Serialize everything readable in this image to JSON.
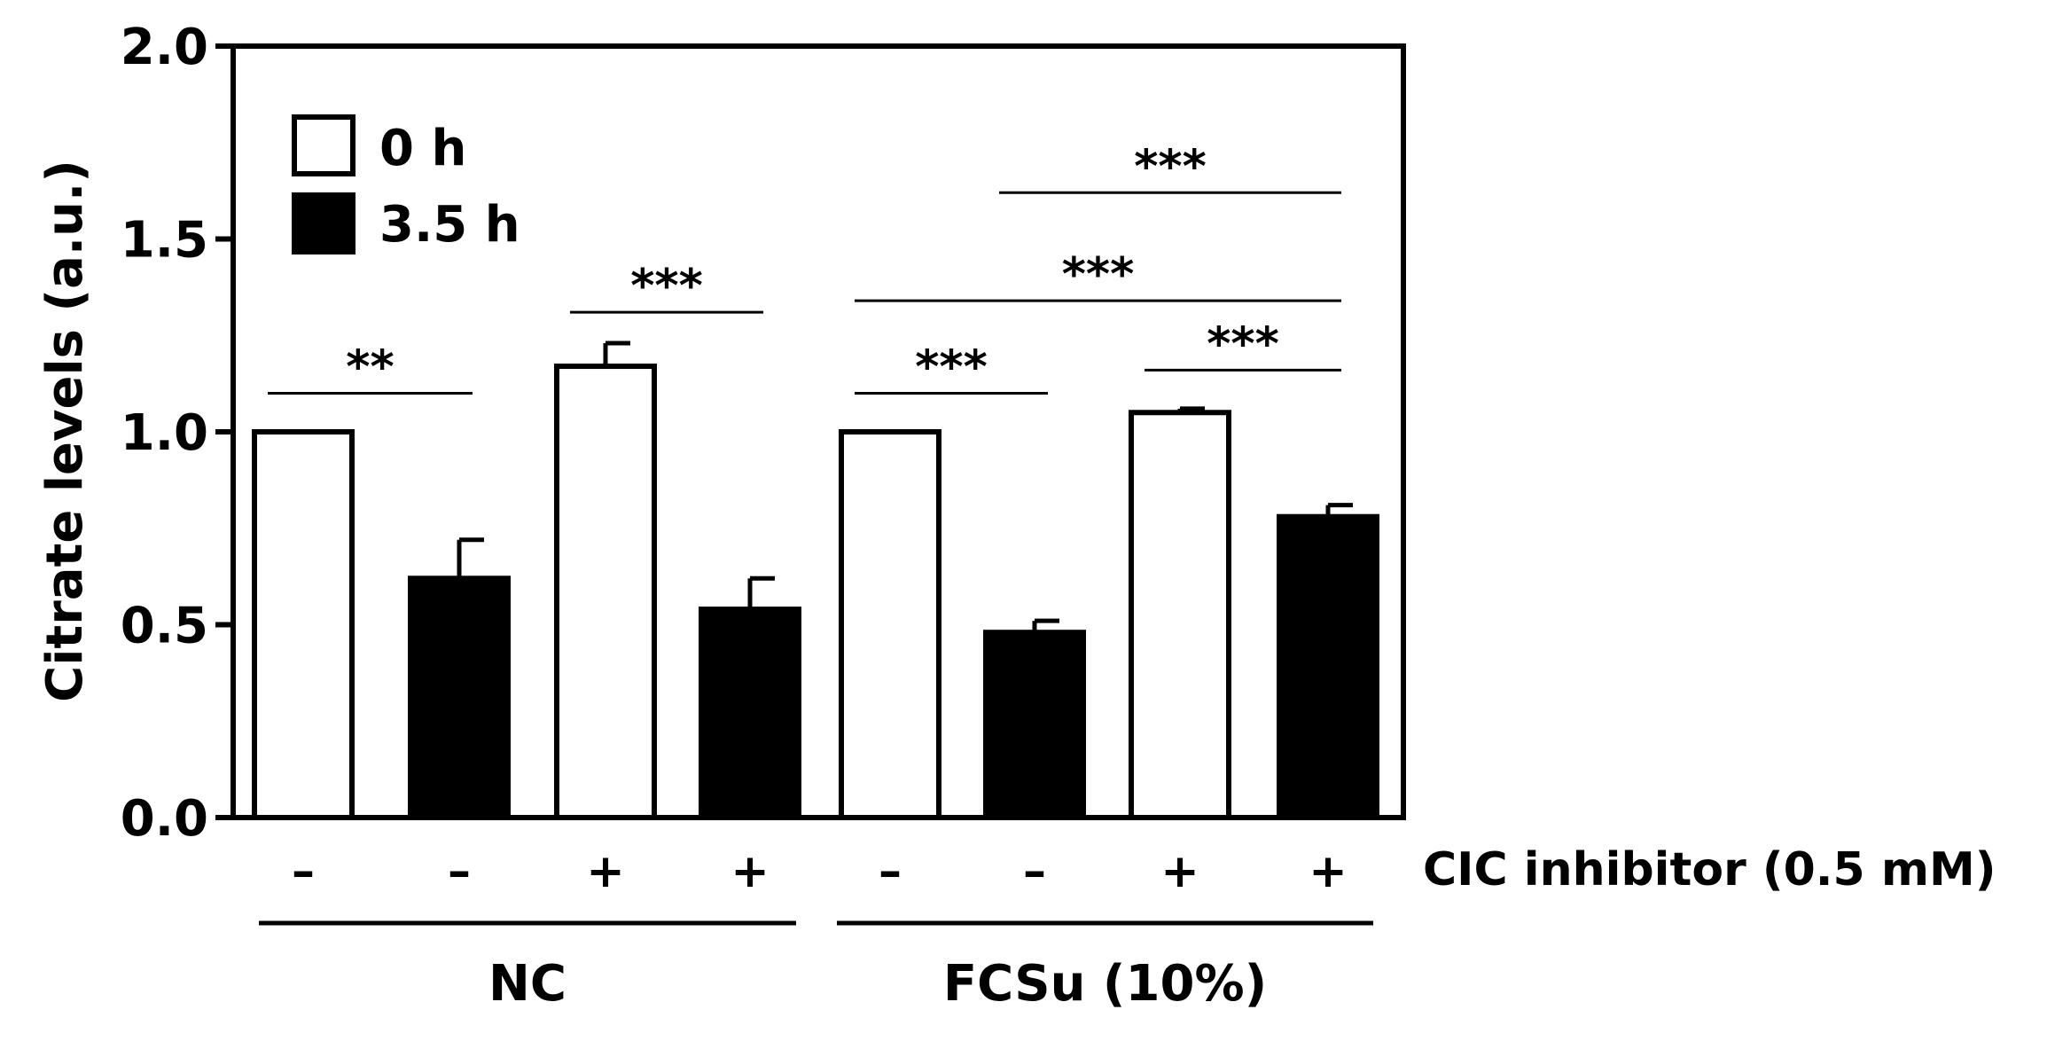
{
  "chart_data": {
    "type": "bar",
    "title": "",
    "ylabel": "Citrate levels (a.u.)",
    "ylim": [
      0,
      2.0
    ],
    "yticks": [
      "0.0",
      "0.5",
      "1.0",
      "1.5",
      "2.0"
    ],
    "grid": false,
    "legend": {
      "placement": "top-left",
      "entries": [
        {
          "label": "0 h",
          "fill": "#ffffff"
        },
        {
          "label": "3.5 h",
          "fill": "#000000"
        }
      ]
    },
    "factor_label": "CIC inhibitor (0.5 mM)",
    "groups": [
      "NC",
      "FCSu (10%)"
    ],
    "bars": [
      {
        "group": "NC",
        "inhibitor": "–",
        "series": "0 h",
        "value": 1.0,
        "error": 0
      },
      {
        "group": "NC",
        "inhibitor": "–",
        "series": "3.5 h",
        "value": 0.62,
        "error": 0.1
      },
      {
        "group": "NC",
        "inhibitor": "+",
        "series": "0 h",
        "value": 1.17,
        "error": 0.06
      },
      {
        "group": "NC",
        "inhibitor": "+",
        "series": "3.5 h",
        "value": 0.54,
        "error": 0.08
      },
      {
        "group": "FCSu (10%)",
        "inhibitor": "–",
        "series": "0 h",
        "value": 1.0,
        "error": 0
      },
      {
        "group": "FCSu (10%)",
        "inhibitor": "–",
        "series": "3.5 h",
        "value": 0.48,
        "error": 0.03
      },
      {
        "group": "FCSu (10%)",
        "inhibitor": "+",
        "series": "0 h",
        "value": 1.05,
        "error": 0.01
      },
      {
        "group": "FCSu (10%)",
        "inhibitor": "+",
        "series": "3.5 h",
        "value": 0.78,
        "error": 0.03
      }
    ],
    "significance": [
      {
        "from": 0,
        "to": 1,
        "label": "**",
        "level": 1.1
      },
      {
        "from": 2,
        "to": 3,
        "label": "***",
        "level": 1.31
      },
      {
        "from": 4,
        "to": 5,
        "label": "***",
        "level": 1.1
      },
      {
        "from": 6,
        "to": 7,
        "label": "***",
        "level": 1.16
      },
      {
        "from": 4,
        "to": 7,
        "label": "***",
        "level": 1.34
      },
      {
        "from": 5,
        "to": 7,
        "label": "***",
        "level": 1.62
      }
    ]
  },
  "colors": {
    "filled": "#000000",
    "open": "#ffffff",
    "stroke": "#000000"
  }
}
